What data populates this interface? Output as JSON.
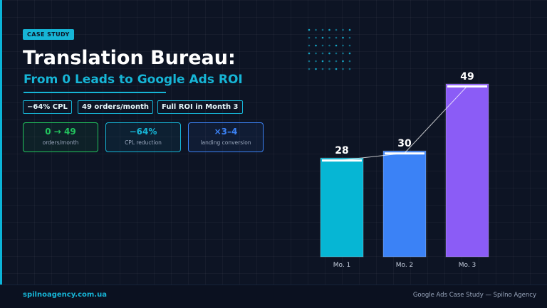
{
  "badge": "CASE STUDY",
  "title": "Translation Bureau:",
  "subtitle": "From 0 Leads to Google Ads ROI",
  "chips": [
    "−64% CPL",
    "49 orders/month",
    "Full ROI in Month 3"
  ],
  "stats": [
    {
      "value": "0 → 49",
      "label": "orders/month",
      "color": "#22c55e"
    },
    {
      "value": "−64%",
      "label": "CPL reduction",
      "color": "#16b5d6"
    },
    {
      "value": "×3–4",
      "label": "landing conversion",
      "color": "#3b82f6"
    }
  ],
  "footer": {
    "site": "spilnoagency.com.ua",
    "caption": "Google Ads Case Study — Spilno Agency"
  },
  "colors": {
    "accent": "#16b5d6",
    "bar1": "#06b6d4",
    "bar2": "#3b82f6",
    "bar3": "#8b5cf6"
  },
  "chart_data": {
    "type": "bar",
    "categories": [
      "Mo. 1",
      "Mo. 2",
      "Mo. 3"
    ],
    "values": [
      28,
      30,
      49
    ],
    "title": "",
    "xlabel": "",
    "ylabel": "",
    "ylim": [
      0,
      49
    ],
    "trend_line": true,
    "grid": false
  }
}
